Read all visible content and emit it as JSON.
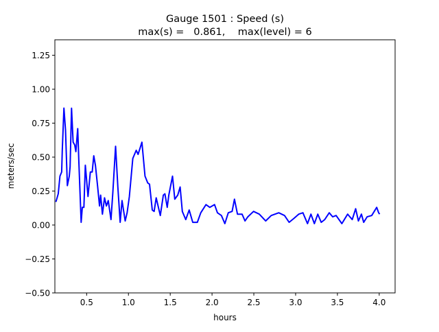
{
  "chart_data": {
    "type": "line",
    "title_line1": "Gauge 1501 : Speed (s)",
    "title_line2": "max(s) =   0.861,    max(level) = 6",
    "xlabel": "hours",
    "ylabel": "meters/sec",
    "xlim": [
      0.12,
      4.19
    ],
    "ylim": [
      -0.5,
      1.364
    ],
    "grid": false,
    "x_ticks": [
      0.5,
      1.0,
      1.5,
      2.0,
      2.5,
      3.0,
      3.5,
      4.0
    ],
    "x_tick_labels": [
      "0.5",
      "1.0",
      "1.5",
      "2.0",
      "2.5",
      "3.0",
      "3.5",
      "4.0"
    ],
    "y_ticks": [
      -0.5,
      -0.25,
      0.0,
      0.25,
      0.5,
      0.75,
      1.0,
      1.25
    ],
    "y_tick_labels": [
      "−0.50",
      "−0.25",
      "0.00",
      "0.25",
      "0.50",
      "0.75",
      "1.00",
      "1.25"
    ],
    "series": [
      {
        "name": "speed",
        "color": "#0000ff",
        "x": [
          0.132,
          0.16,
          0.181,
          0.201,
          0.209,
          0.228,
          0.247,
          0.269,
          0.292,
          0.302,
          0.319,
          0.338,
          0.357,
          0.371,
          0.393,
          0.407,
          0.434,
          0.448,
          0.467,
          0.484,
          0.498,
          0.516,
          0.544,
          0.566,
          0.585,
          0.605,
          0.632,
          0.654,
          0.667,
          0.689,
          0.714,
          0.736,
          0.758,
          0.791,
          0.813,
          0.846,
          0.873,
          0.901,
          0.923,
          0.961,
          0.984,
          1.011,
          1.052,
          1.093,
          1.115,
          1.161,
          1.198,
          1.231,
          1.252,
          1.285,
          1.307,
          1.332,
          1.381,
          1.417,
          1.436,
          1.464,
          1.483,
          1.527,
          1.554,
          1.59,
          1.618,
          1.645,
          1.686,
          1.727,
          1.769,
          1.824,
          1.865,
          1.928,
          1.974,
          2.03,
          2.065,
          2.112,
          2.153,
          2.194,
          2.24,
          2.268,
          2.304,
          2.359,
          2.395,
          2.428,
          2.496,
          2.565,
          2.642,
          2.708,
          2.798,
          2.867,
          2.922,
          2.982,
          3.037,
          3.087,
          3.142,
          3.183,
          3.224,
          3.265,
          3.306,
          3.348,
          3.402,
          3.443,
          3.484,
          3.553,
          3.622,
          3.677,
          3.718,
          3.751,
          3.787,
          3.814,
          3.855,
          3.91,
          3.97,
          3.993,
          4.005
        ],
        "y": [
          0.17,
          0.23,
          0.36,
          0.39,
          0.55,
          0.861,
          0.7,
          0.29,
          0.36,
          0.43,
          0.86,
          0.61,
          0.59,
          0.54,
          0.71,
          0.46,
          0.02,
          0.13,
          0.13,
          0.44,
          0.34,
          0.21,
          0.39,
          0.39,
          0.51,
          0.44,
          0.28,
          0.14,
          0.22,
          0.08,
          0.2,
          0.14,
          0.18,
          0.04,
          0.24,
          0.58,
          0.28,
          0.02,
          0.18,
          0.03,
          0.09,
          0.21,
          0.49,
          0.55,
          0.52,
          0.61,
          0.36,
          0.31,
          0.3,
          0.11,
          0.1,
          0.2,
          0.07,
          0.22,
          0.23,
          0.13,
          0.22,
          0.36,
          0.19,
          0.22,
          0.28,
          0.1,
          0.04,
          0.11,
          0.02,
          0.02,
          0.09,
          0.15,
          0.13,
          0.15,
          0.09,
          0.07,
          0.01,
          0.09,
          0.1,
          0.19,
          0.08,
          0.08,
          0.03,
          0.06,
          0.1,
          0.08,
          0.03,
          0.07,
          0.09,
          0.07,
          0.02,
          0.05,
          0.08,
          0.09,
          0.01,
          0.08,
          0.01,
          0.08,
          0.02,
          0.04,
          0.09,
          0.06,
          0.07,
          0.01,
          0.08,
          0.04,
          0.12,
          0.03,
          0.08,
          0.02,
          0.06,
          0.07,
          0.13,
          0.09,
          0.08
        ]
      }
    ]
  }
}
